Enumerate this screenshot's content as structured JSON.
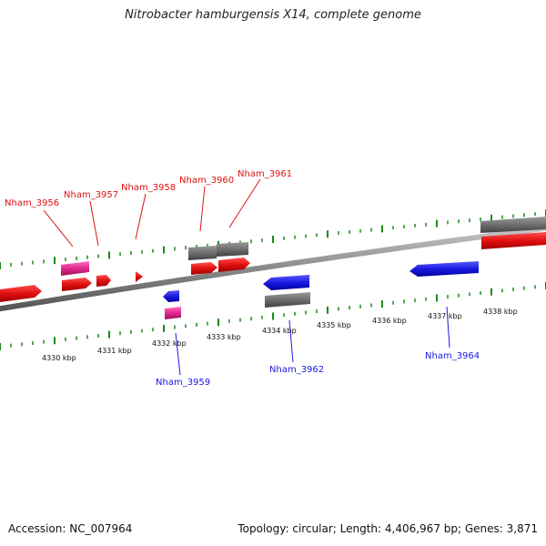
{
  "title": "Nitrobacter hamburgensis X14, complete genome",
  "footer": {
    "accession": "Accession: NC_007964",
    "summary": "Topology: circular; Length: 4,406,967 bp; Genes: 3,871"
  },
  "colors": {
    "forward_gene": "#e01010",
    "reverse_gene": "#1a1ae0",
    "rna_gene": "#e0288c",
    "other_feature": "#6e6e6e",
    "tick_marks": "#1a8a1a",
    "backbone": "#8a8a8a"
  },
  "scale_labels": [
    "4330 kbp",
    "4331 kbp",
    "4332 kbp",
    "4333 kbp",
    "4334 kbp",
    "4335 kbp",
    "4336 kbp",
    "4337 kbp",
    "4338 kbp"
  ],
  "gene_labels": [
    {
      "text": "Nham_3956",
      "strand": "forward"
    },
    {
      "text": "Nham_3957",
      "strand": "forward"
    },
    {
      "text": "Nham_3958",
      "strand": "forward"
    },
    {
      "text": "Nham_3960",
      "strand": "forward"
    },
    {
      "text": "Nham_3961",
      "strand": "forward"
    },
    {
      "text": "Nham_3959",
      "strand": "reverse"
    },
    {
      "text": "Nham_3962",
      "strand": "reverse"
    },
    {
      "text": "Nham_3964",
      "strand": "reverse"
    }
  ]
}
